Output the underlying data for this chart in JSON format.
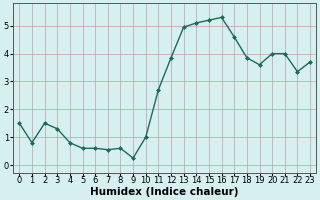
{
  "x": [
    0,
    1,
    2,
    3,
    4,
    5,
    6,
    7,
    8,
    9,
    10,
    11,
    12,
    13,
    14,
    15,
    16,
    17,
    18,
    19,
    20,
    21,
    22,
    23
  ],
  "y": [
    1.5,
    0.8,
    1.5,
    1.3,
    0.8,
    0.6,
    0.6,
    0.55,
    0.6,
    0.25,
    1.0,
    2.7,
    3.85,
    4.95,
    5.1,
    5.2,
    5.3,
    4.6,
    3.85,
    3.6,
    4.0,
    4.0,
    3.35,
    3.7
  ],
  "line_color": "#1a6b5a",
  "marker": "D",
  "markersize": 2,
  "linewidth": 1.0,
  "bg_color": "#d6f0f0",
  "grid_color": "#c0a0a0",
  "xlabel": "Humidex (Indice chaleur)",
  "xlabel_fontsize": 7.5,
  "xlabel_fontweight": "bold",
  "xlim": [
    -0.5,
    23.5
  ],
  "ylim": [
    -0.3,
    5.8
  ],
  "yticks": [
    0,
    1,
    2,
    3,
    4,
    5
  ],
  "xtick_labels": [
    "0",
    "1",
    "2",
    "3",
    "4",
    "5",
    "6",
    "7",
    "8",
    "9",
    "10",
    "11",
    "12",
    "13",
    "14",
    "15",
    "16",
    "17",
    "18",
    "19",
    "20",
    "21",
    "22",
    "23"
  ],
  "tick_fontsize": 6,
  "figsize": [
    3.2,
    2.0
  ],
  "dpi": 100
}
